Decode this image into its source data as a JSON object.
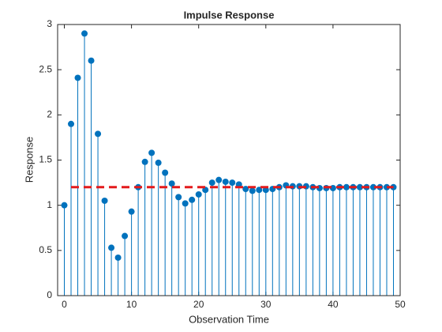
{
  "chart_data": {
    "type": "stem",
    "title": "Impulse Response",
    "xlabel": "Observation Time",
    "ylabel": "Response",
    "x": [
      0,
      1,
      2,
      3,
      4,
      5,
      6,
      7,
      8,
      9,
      10,
      11,
      12,
      13,
      14,
      15,
      16,
      17,
      18,
      19,
      20,
      21,
      22,
      23,
      24,
      25,
      26,
      27,
      28,
      29,
      30,
      31,
      32,
      33,
      34,
      35,
      36,
      37,
      38,
      39,
      40,
      41,
      42,
      43,
      44,
      45,
      46,
      47,
      48,
      49
    ],
    "series": [
      {
        "color": "#0072bd",
        "values": [
          1.0,
          1.9,
          2.41,
          2.9,
          2.6,
          1.79,
          1.05,
          0.53,
          0.42,
          0.66,
          0.93,
          1.2,
          1.48,
          1.58,
          1.47,
          1.36,
          1.24,
          1.09,
          1.02,
          1.06,
          1.12,
          1.17,
          1.25,
          1.28,
          1.26,
          1.25,
          1.23,
          1.18,
          1.16,
          1.17,
          1.17,
          1.18,
          1.2,
          1.22,
          1.21,
          1.21,
          1.21,
          1.2,
          1.19,
          1.19,
          1.19,
          1.2,
          1.2,
          1.2,
          1.2,
          1.2,
          1.2,
          1.2,
          1.2,
          1.2
        ]
      }
    ],
    "reference_line": {
      "x": [
        1,
        49
      ],
      "y": 1.2,
      "color": "#e31a1c",
      "style": "dashed"
    },
    "xlim": [
      -1,
      50
    ],
    "ylim": [
      0,
      3
    ],
    "xticks": [
      0,
      10,
      20,
      30,
      40,
      50
    ],
    "yticks": [
      0,
      0.5,
      1,
      1.5,
      2,
      2.5,
      3
    ],
    "grid": false
  }
}
